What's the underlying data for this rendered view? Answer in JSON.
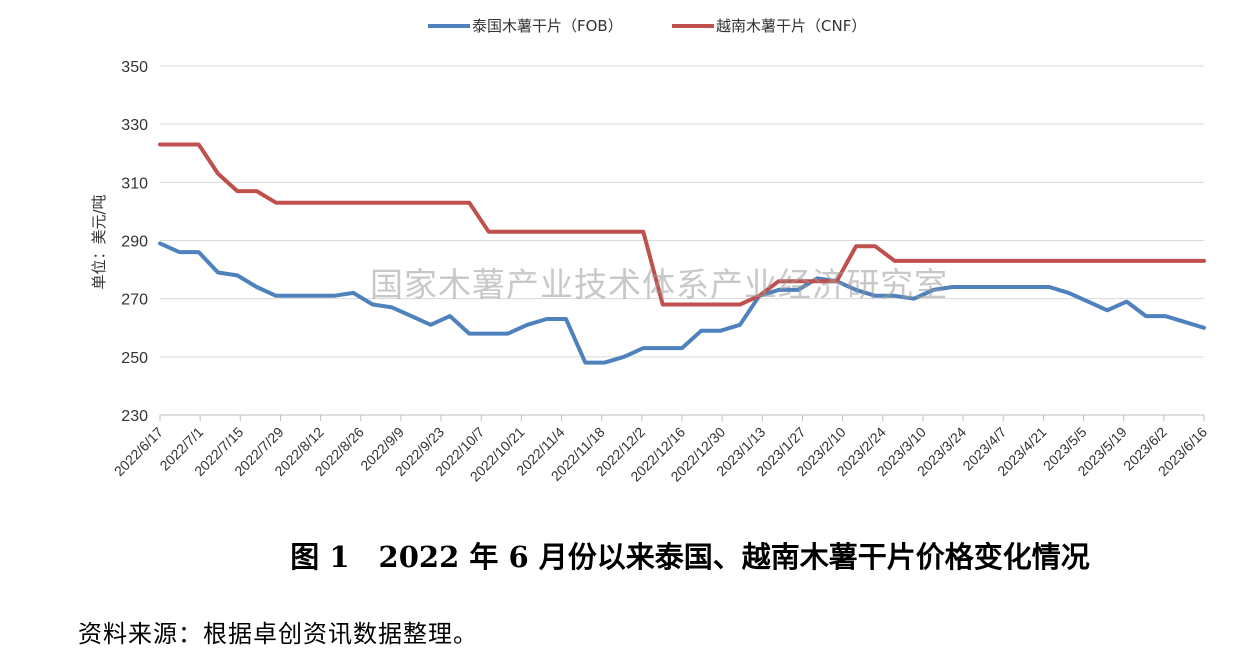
{
  "chart_data": {
    "type": "line",
    "ylabel": "单位：美元/吨",
    "ylim": [
      230,
      350
    ],
    "yticks": [
      230,
      250,
      270,
      290,
      310,
      330,
      350
    ],
    "grid": true,
    "legend_position": "top-center",
    "x_tick_labels": [
      "2022/6/17",
      "2022/7/1",
      "2022/7/15",
      "2022/7/29",
      "2022/8/12",
      "2022/8/26",
      "2022/9/9",
      "2022/9/23",
      "2022/10/7",
      "2022/10/21",
      "2022/11/4",
      "2022/11/18",
      "2022/12/2",
      "2022/12/16",
      "2022/12/30",
      "2023/1/13",
      "2023/1/27",
      "2023/2/10",
      "2023/2/24",
      "2023/3/10",
      "2023/3/24",
      "2023/4/7",
      "2023/4/21",
      "2023/5/5",
      "2023/5/19",
      "2023/6/2",
      "2023/6/16"
    ],
    "series": [
      {
        "name": "泰国木薯干片（FOB）",
        "color": "#4f81bd",
        "values": [
          289,
          286,
          286,
          279,
          278,
          274,
          271,
          271,
          271,
          271,
          272,
          268,
          267,
          264,
          261,
          264,
          258,
          258,
          258,
          261,
          263,
          263,
          248,
          248,
          250,
          253,
          253,
          253,
          259,
          259,
          261,
          271,
          273,
          273,
          277,
          276,
          273,
          271,
          271,
          270,
          273,
          274,
          274,
          274,
          274,
          274,
          274,
          272,
          269,
          266,
          269,
          264,
          264,
          262,
          260
        ]
      },
      {
        "name": "越南木薯干片（CNF）",
        "color": "#c0504d",
        "values": [
          323,
          323,
          323,
          313,
          307,
          307,
          303,
          303,
          303,
          303,
          303,
          303,
          303,
          303,
          303,
          303,
          303,
          293,
          293,
          293,
          293,
          293,
          293,
          293,
          293,
          293,
          268,
          268,
          268,
          268,
          268,
          271,
          276,
          276,
          276,
          276,
          288,
          288,
          283,
          283,
          283,
          283,
          283,
          283,
          283,
          283,
          283,
          283,
          283,
          283,
          283,
          283,
          283,
          283,
          283
        ]
      }
    ]
  },
  "watermark": "国家木薯产业技术体系产业经济研究室",
  "caption": "图 1　2022 年 6 月份以来泰国、越南木薯干片价格变化情况",
  "source_note": "资料来源：根据卓创资讯数据整理。"
}
